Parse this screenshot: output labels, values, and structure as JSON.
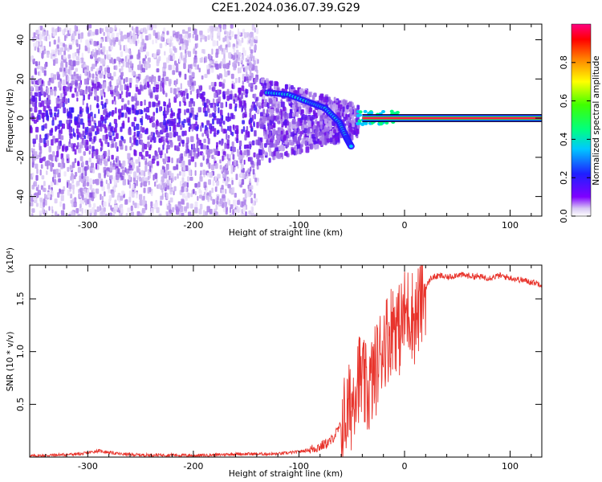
{
  "figure": {
    "title": "C2E1.2024.036.07.39.G29"
  },
  "chart_data": [
    {
      "type": "heatmap",
      "xlabel": "Height of straight line (km)",
      "ylabel": "Frequency (Hz)",
      "xlim": [
        -355,
        130
      ],
      "ylim": [
        -50,
        48
      ],
      "xticks": [
        -300,
        -200,
        -100,
        0,
        100
      ],
      "yticks": [
        -40,
        -20,
        0,
        20,
        40
      ],
      "grid": false,
      "colormap": "rainbow (violet → blue → cyan → green → yellow → red → magenta)",
      "colorbar": {
        "label": "Normalized spectral amplitude",
        "range": [
          0,
          1
        ],
        "ticks": [
          0.0,
          0.2,
          0.4,
          0.6,
          0.8
        ]
      },
      "features": [
        {
          "name": "broad low-amplitude scatter",
          "x_range": [
            -355,
            -140
          ],
          "freq_range": [
            -50,
            48
          ],
          "amplitude": 0.1
        },
        {
          "name": "descending blob track",
          "points": [
            [
              -130,
              13
            ],
            [
              -110,
              12
            ],
            [
              -90,
              8
            ],
            [
              -75,
              5
            ],
            [
              -62,
              -2
            ],
            [
              -55,
              -10
            ],
            [
              -50,
              -15
            ]
          ],
          "amplitude": 0.35
        },
        {
          "name": "carrier line",
          "x_range": [
            -40,
            130
          ],
          "freq": 0,
          "amplitude": 0.95
        }
      ]
    },
    {
      "type": "line",
      "xlabel": "Height of straight line (km)",
      "ylabel": "SNR (10 * v/v)",
      "y_multiplier": "(x10⁴)",
      "xlim": [
        -355,
        130
      ],
      "ylim": [
        0,
        1.82
      ],
      "xticks": [
        -300,
        -200,
        -100,
        0,
        100
      ],
      "yticks": [
        0.5,
        1.0,
        1.5
      ],
      "ytick_labels": [
        "0.5",
        "1.0",
        "1.5"
      ],
      "grid": false,
      "series": [
        {
          "color": "#e8342c",
          "x": [
            -355,
            -330,
            -305,
            -290,
            -270,
            -250,
            -220,
            -200,
            -180,
            -160,
            -140,
            -120,
            -100,
            -90,
            -80,
            -70,
            -60,
            -50,
            -45,
            -40,
            -35,
            -30,
            -25,
            -20,
            -15,
            -10,
            -5,
            0,
            5,
            10,
            15,
            20,
            25,
            30,
            35,
            40,
            50,
            60,
            70,
            80,
            90,
            100,
            110,
            120,
            130
          ],
          "y": [
            0.01,
            0.02,
            0.03,
            0.06,
            0.03,
            0.02,
            0.02,
            0.015,
            0.02,
            0.03,
            0.03,
            0.03,
            0.05,
            0.07,
            0.1,
            0.15,
            0.3,
            0.5,
            0.8,
            0.7,
            0.6,
            0.75,
            0.9,
            1.1,
            1.15,
            1.3,
            1.2,
            1.35,
            1.4,
            1.3,
            1.45,
            1.6,
            1.7,
            1.71,
            1.72,
            1.7,
            1.73,
            1.72,
            1.71,
            1.7,
            1.72,
            1.7,
            1.68,
            1.66,
            1.64
          ]
        }
      ]
    }
  ]
}
